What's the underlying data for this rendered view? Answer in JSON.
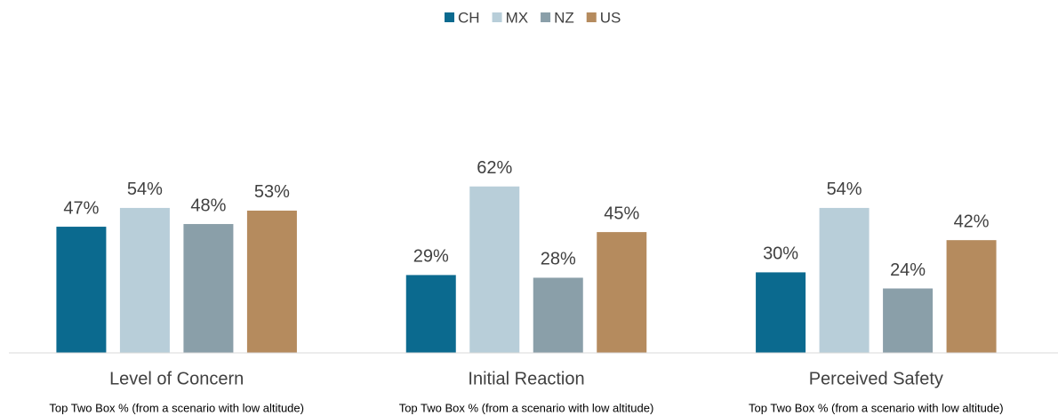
{
  "chart_data": {
    "type": "bar",
    "categories": [
      "Level of Concern",
      "Initial Reaction",
      "Perceived Safety"
    ],
    "category_notes": [
      "Top Two Box % (from a scenario with low altitude)",
      "Top Two Box % (from a scenario with low altitude)",
      "Top Two Box % (from a scenario with low altitude)"
    ],
    "series": [
      {
        "name": "CH",
        "color": "#0b6a8f",
        "values": [
          47,
          29,
          30
        ],
        "value_labels": [
          "47%",
          "29%",
          "30%"
        ]
      },
      {
        "name": "MX",
        "color": "#b8ced9",
        "values": [
          54,
          62,
          54
        ],
        "value_labels": [
          "54%",
          "62%",
          "54%"
        ]
      },
      {
        "name": "NZ",
        "color": "#8a9fa9",
        "values": [
          48,
          28,
          24
        ],
        "value_labels": [
          "48%",
          "28%",
          "24%"
        ]
      },
      {
        "name": "US",
        "color": "#b58b5e",
        "values": [
          53,
          45,
          42
        ],
        "value_labels": [
          "53%",
          "45%",
          "42%"
        ]
      }
    ],
    "ylim": [
      0,
      100
    ],
    "legend": "top"
  }
}
